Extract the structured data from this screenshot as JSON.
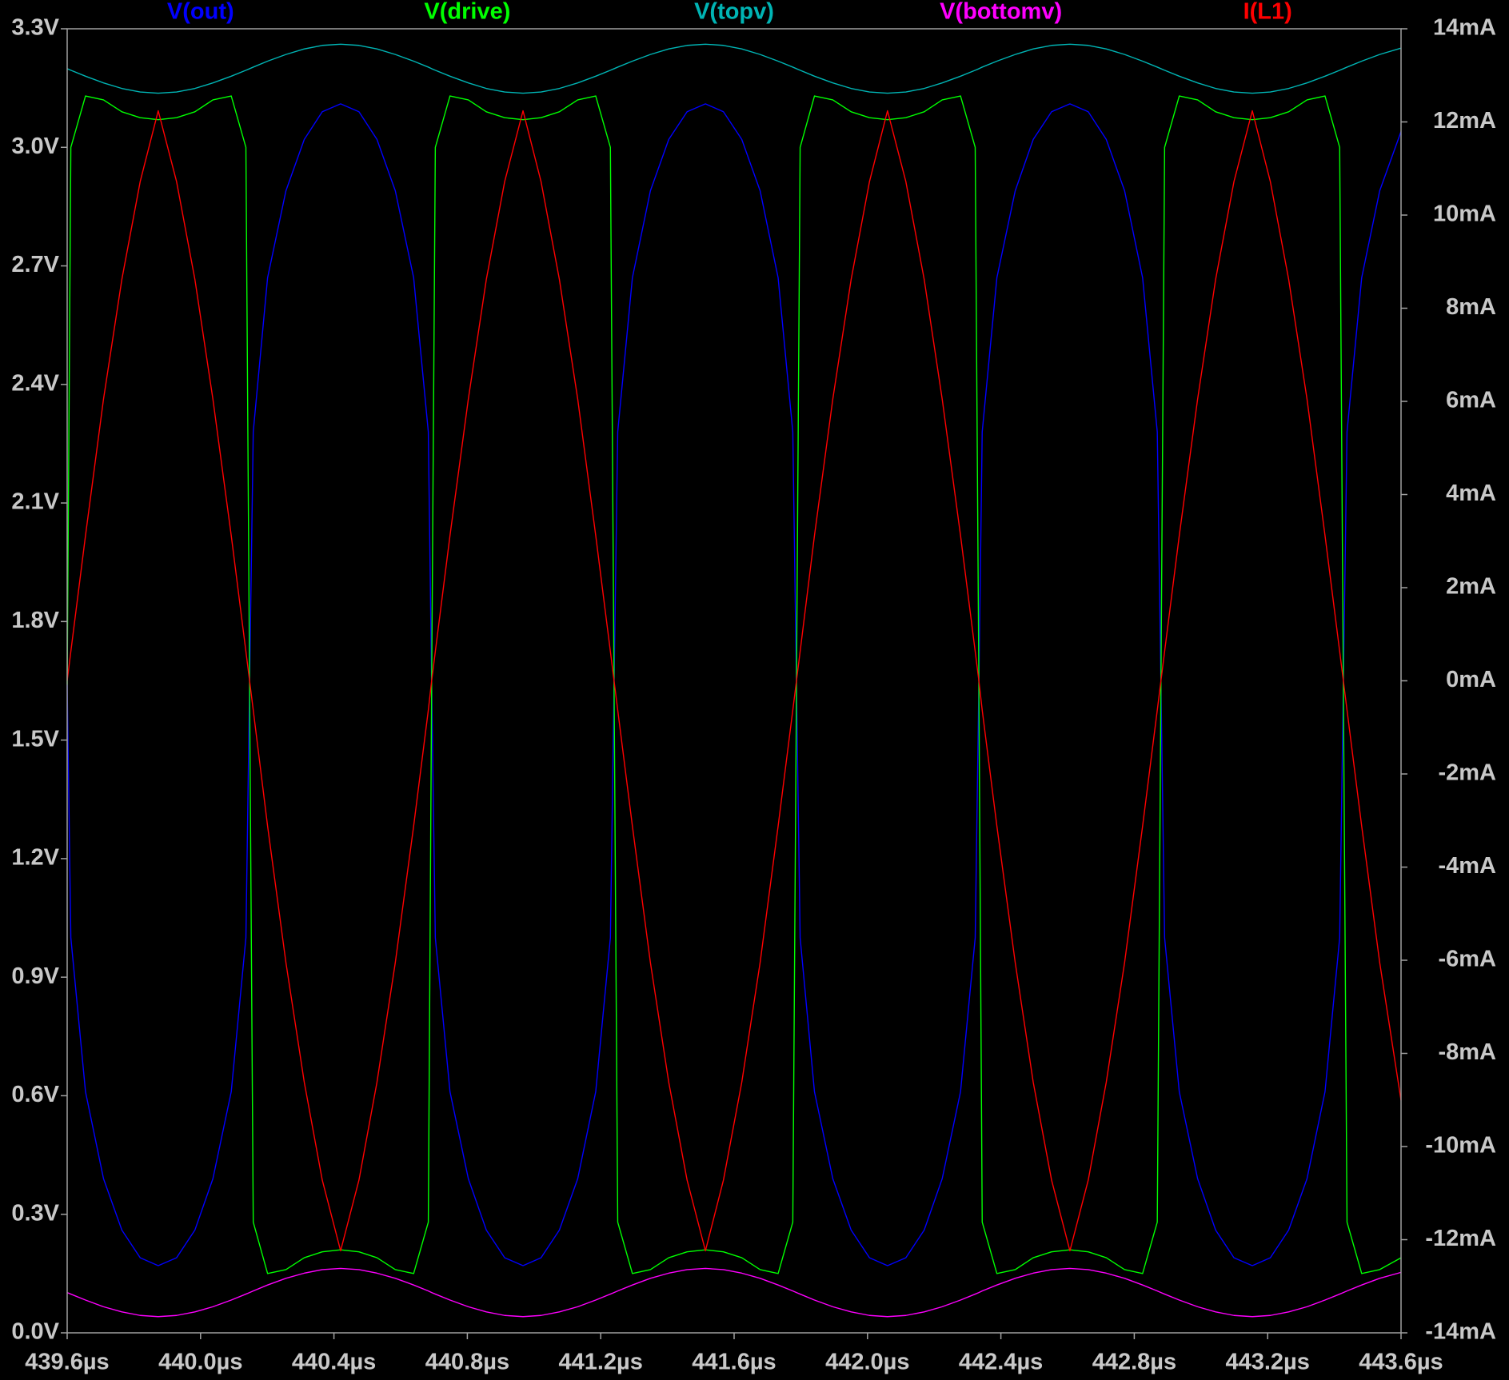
{
  "chart_data": {
    "type": "line",
    "background": "#000000",
    "legend": "top",
    "grid": false,
    "xlim": [
      439.6,
      443.6
    ],
    "ylim": [
      0,
      3.3
    ],
    "y2lim": [
      -14,
      14
    ],
    "xticks": [
      {
        "value": 439.6,
        "label": "439.6µs"
      },
      {
        "value": 440.0,
        "label": "440.0µs"
      },
      {
        "value": 440.4,
        "label": "440.4µs"
      },
      {
        "value": 440.8,
        "label": "440.8µs"
      },
      {
        "value": 441.2,
        "label": "441.2µs"
      },
      {
        "value": 441.6,
        "label": "441.6µs"
      },
      {
        "value": 442.0,
        "label": "442.0µs"
      },
      {
        "value": 442.4,
        "label": "442.4µs"
      },
      {
        "value": 442.8,
        "label": "442.8µs"
      },
      {
        "value": 443.2,
        "label": "443.2µs"
      },
      {
        "value": 443.6,
        "label": "443.6µs"
      }
    ],
    "yticks": [
      {
        "value": 0,
        "label": "0.0V"
      },
      {
        "value": 0.3,
        "label": "0.3V"
      },
      {
        "value": 0.6,
        "label": "0.6V"
      },
      {
        "value": 0.9,
        "label": "0.9V"
      },
      {
        "value": 1.2,
        "label": "1.2V"
      },
      {
        "value": 1.5,
        "label": "1.5V"
      },
      {
        "value": 1.8,
        "label": "1.8V"
      },
      {
        "value": 2.1,
        "label": "2.1V"
      },
      {
        "value": 2.4,
        "label": "2.4V"
      },
      {
        "value": 2.7,
        "label": "2.7V"
      },
      {
        "value": 3.0,
        "label": "3.0V"
      },
      {
        "value": 3.3,
        "label": "3.3V"
      }
    ],
    "y2ticks": [
      {
        "value": -14,
        "label": "-14mA"
      },
      {
        "value": -12,
        "label": "-12mA"
      },
      {
        "value": -10,
        "label": "-10mA"
      },
      {
        "value": -8,
        "label": "-8mA"
      },
      {
        "value": -6,
        "label": "-6mA"
      },
      {
        "value": -4,
        "label": "-4mA"
      },
      {
        "value": -2,
        "label": "-2mA"
      },
      {
        "value": 0,
        "label": "0mA"
      },
      {
        "value": 2,
        "label": "2mA"
      },
      {
        "value": 4,
        "label": "4mA"
      },
      {
        "value": 6,
        "label": "6mA"
      },
      {
        "value": 8,
        "label": "8mA"
      },
      {
        "value": 10,
        "label": "10mA"
      },
      {
        "value": 12,
        "label": "12mA"
      },
      {
        "value": 14,
        "label": "14mA"
      }
    ],
    "x": [
      439.6,
      439.611,
      439.655,
      439.709,
      439.764,
      439.819,
      439.873,
      439.928,
      439.983,
      440.037,
      440.092,
      440.136,
      440.147,
      440.158,
      440.201,
      440.256,
      440.311,
      440.365,
      440.42,
      440.475,
      440.529,
      440.584,
      440.639,
      440.683,
      440.693,
      440.704,
      440.748,
      440.803,
      440.857,
      440.912,
      440.967,
      441.021,
      441.076,
      441.131,
      441.185,
      441.229,
      441.24,
      441.251,
      441.295,
      441.349,
      441.404,
      441.459,
      441.514,
      441.568,
      441.623,
      441.678,
      441.732,
      441.776,
      441.787,
      441.798,
      441.841,
      441.896,
      441.951,
      442.006,
      442.06,
      442.115,
      442.17,
      442.224,
      442.279,
      442.323,
      442.334,
      442.344,
      442.388,
      442.443,
      442.497,
      442.552,
      442.607,
      442.662,
      442.716,
      442.771,
      442.825,
      442.869,
      442.88,
      442.891,
      442.935,
      442.99,
      443.044,
      443.099,
      443.154,
      443.208,
      443.263,
      443.318,
      443.372,
      443.416,
      443.427,
      443.438,
      443.482,
      443.536,
      443.6
    ],
    "series": [
      {
        "name": "V(out)",
        "color": "#0000ff",
        "values": [
          1.64,
          1.0,
          0.61,
          0.39,
          0.26,
          0.19,
          0.17,
          0.19,
          0.26,
          0.39,
          0.61,
          1.0,
          1.64,
          2.28,
          2.67,
          2.89,
          3.02,
          3.09,
          3.11,
          3.09,
          3.02,
          2.89,
          2.67,
          2.28,
          1.64,
          1.0,
          0.61,
          0.39,
          0.26,
          0.19,
          0.17,
          0.19,
          0.26,
          0.39,
          0.61,
          1.0,
          1.64,
          2.28,
          2.67,
          2.89,
          3.02,
          3.09,
          3.11,
          3.09,
          3.02,
          2.89,
          2.67,
          2.28,
          1.64,
          1.0,
          0.61,
          0.39,
          0.26,
          0.19,
          0.17,
          0.19,
          0.26,
          0.39,
          0.61,
          1.0,
          1.64,
          2.28,
          2.67,
          2.89,
          3.02,
          3.09,
          3.11,
          3.09,
          3.02,
          2.89,
          2.67,
          2.28,
          1.64,
          1.0,
          0.61,
          0.39,
          0.26,
          0.19,
          0.17,
          0.19,
          0.26,
          0.39,
          0.61,
          1.0,
          1.64,
          2.28,
          2.67,
          2.89,
          3.04
        ]
      },
      {
        "name": "V(drive)",
        "color": "#00ff00",
        "values": [
          1.64,
          3.0,
          3.13,
          3.12,
          3.09,
          3.075,
          3.07,
          3.075,
          3.09,
          3.12,
          3.13,
          3.0,
          1.64,
          0.28,
          0.15,
          0.16,
          0.19,
          0.205,
          0.21,
          0.205,
          0.19,
          0.16,
          0.15,
          0.28,
          1.64,
          3.0,
          3.13,
          3.12,
          3.09,
          3.075,
          3.07,
          3.075,
          3.09,
          3.12,
          3.13,
          3.0,
          1.64,
          0.28,
          0.15,
          0.16,
          0.19,
          0.205,
          0.21,
          0.205,
          0.19,
          0.16,
          0.15,
          0.28,
          1.64,
          3.0,
          3.13,
          3.12,
          3.09,
          3.075,
          3.07,
          3.075,
          3.09,
          3.12,
          3.13,
          3.0,
          1.64,
          0.28,
          0.15,
          0.16,
          0.19,
          0.205,
          0.21,
          0.205,
          0.19,
          0.16,
          0.15,
          0.28,
          1.64,
          3.0,
          3.13,
          3.12,
          3.09,
          3.075,
          3.07,
          3.075,
          3.09,
          3.12,
          3.13,
          3.0,
          1.64,
          0.28,
          0.15,
          0.16,
          0.19
        ]
      },
      {
        "name": "V(topv)",
        "color": "#00b4b4",
        "values": [
          3.199,
          3.195,
          3.18,
          3.163,
          3.149,
          3.14,
          3.137,
          3.14,
          3.149,
          3.163,
          3.18,
          3.195,
          3.199,
          3.203,
          3.218,
          3.235,
          3.249,
          3.258,
          3.261,
          3.258,
          3.249,
          3.235,
          3.218,
          3.203,
          3.199,
          3.195,
          3.18,
          3.163,
          3.149,
          3.14,
          3.137,
          3.14,
          3.149,
          3.163,
          3.18,
          3.195,
          3.199,
          3.203,
          3.218,
          3.235,
          3.249,
          3.258,
          3.261,
          3.258,
          3.249,
          3.235,
          3.218,
          3.203,
          3.199,
          3.195,
          3.18,
          3.163,
          3.149,
          3.14,
          3.137,
          3.14,
          3.149,
          3.163,
          3.18,
          3.195,
          3.199,
          3.203,
          3.218,
          3.235,
          3.249,
          3.258,
          3.261,
          3.258,
          3.249,
          3.235,
          3.218,
          3.203,
          3.199,
          3.195,
          3.18,
          3.163,
          3.149,
          3.14,
          3.137,
          3.14,
          3.149,
          3.163,
          3.18,
          3.195,
          3.199,
          3.203,
          3.218,
          3.235,
          3.251
        ]
      },
      {
        "name": "V(bottomv)",
        "color": "#ff00ff",
        "values": [
          0.102,
          0.098,
          0.083,
          0.066,
          0.053,
          0.044,
          0.041,
          0.044,
          0.053,
          0.066,
          0.083,
          0.098,
          0.102,
          0.106,
          0.121,
          0.138,
          0.151,
          0.16,
          0.163,
          0.16,
          0.151,
          0.138,
          0.121,
          0.106,
          0.102,
          0.098,
          0.083,
          0.066,
          0.053,
          0.044,
          0.041,
          0.044,
          0.053,
          0.066,
          0.083,
          0.098,
          0.102,
          0.106,
          0.121,
          0.138,
          0.151,
          0.16,
          0.163,
          0.16,
          0.151,
          0.138,
          0.121,
          0.106,
          0.102,
          0.098,
          0.083,
          0.066,
          0.053,
          0.044,
          0.041,
          0.044,
          0.053,
          0.066,
          0.083,
          0.098,
          0.102,
          0.106,
          0.121,
          0.138,
          0.151,
          0.16,
          0.163,
          0.16,
          0.151,
          0.138,
          0.121,
          0.106,
          0.102,
          0.098,
          0.083,
          0.066,
          0.053,
          0.044,
          0.041,
          0.044,
          0.053,
          0.066,
          0.083,
          0.098,
          0.102,
          0.106,
          0.121,
          0.138,
          0.153
        ]
      },
      {
        "name": "I(L1)",
        "color": "#ff0000",
        "axis": "y2",
        "values": [
          0,
          0.63,
          3.12,
          6.05,
          8.62,
          10.72,
          12.24,
          10.72,
          8.62,
          6.05,
          3.12,
          0.63,
          0,
          -0.63,
          -3.12,
          -6.05,
          -8.62,
          -10.72,
          -12.24,
          -10.72,
          -8.62,
          -6.05,
          -3.12,
          -0.63,
          0,
          0.63,
          3.12,
          6.05,
          8.62,
          10.72,
          12.24,
          10.72,
          8.62,
          6.05,
          3.12,
          0.63,
          0,
          -0.63,
          -3.12,
          -6.05,
          -8.62,
          -10.72,
          -12.24,
          -10.72,
          -8.62,
          -6.05,
          -3.12,
          -0.63,
          0,
          0.63,
          3.12,
          6.05,
          8.62,
          10.72,
          12.24,
          10.72,
          8.62,
          6.05,
          3.12,
          0.63,
          0,
          -0.63,
          -3.12,
          -6.05,
          -8.62,
          -10.72,
          -12.24,
          -10.72,
          -8.62,
          -6.05,
          -3.12,
          -0.63,
          0,
          0.63,
          3.12,
          6.05,
          8.62,
          10.72,
          12.24,
          10.72,
          8.62,
          6.05,
          3.12,
          0.63,
          0,
          -0.63,
          -3.12,
          -6.05,
          -9.01
        ]
      }
    ]
  }
}
